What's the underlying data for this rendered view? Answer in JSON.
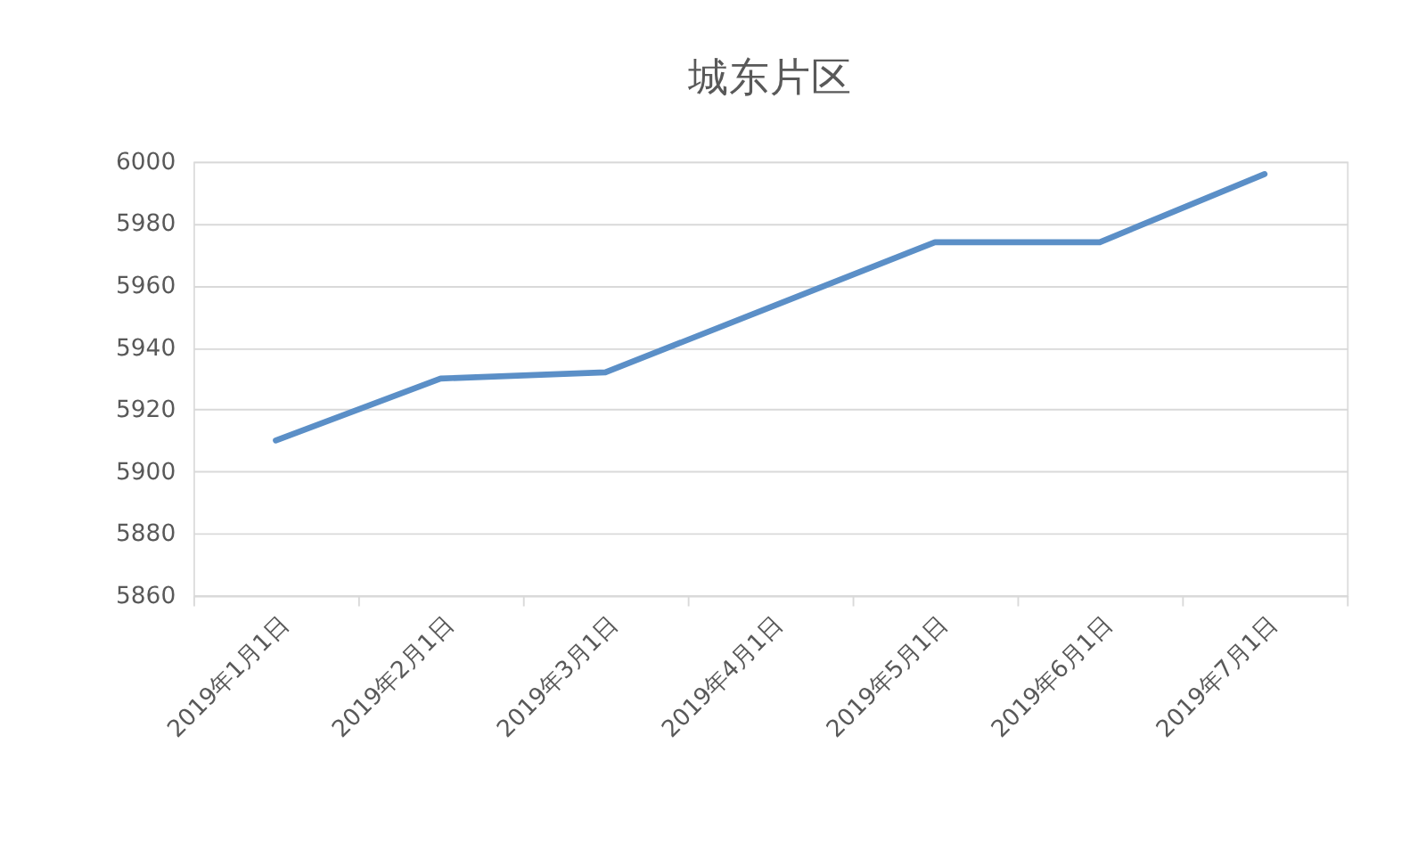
{
  "chart_data": {
    "type": "line",
    "title": "城东片区",
    "categories": [
      "2019年1月1日",
      "2019年2月1日",
      "2019年3月1日",
      "2019年4月1日",
      "2019年5月1日",
      "2019年6月1日",
      "2019年7月1日"
    ],
    "series": [
      {
        "color": "#5b8fc7",
        "values": [
          5910,
          5930,
          5932,
          5953,
          5974,
          5974,
          5996
        ]
      }
    ],
    "ylim": [
      5860,
      6000
    ],
    "yticks": [
      5860,
      5880,
      5900,
      5920,
      5940,
      5960,
      5980,
      6000
    ],
    "grid": "y"
  }
}
